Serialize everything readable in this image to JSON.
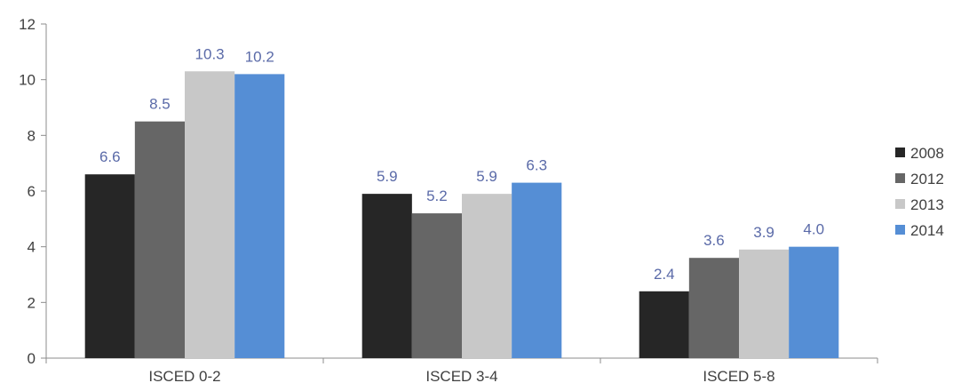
{
  "chart_data": {
    "type": "bar",
    "title": "",
    "xlabel": "",
    "ylabel": "",
    "categories": [
      "ISCED 0-2",
      "ISCED 3-4",
      "ISCED 5-8"
    ],
    "series": [
      {
        "name": "2008",
        "color": "#262626",
        "values": [
          6.6,
          5.9,
          2.4
        ],
        "labels": [
          "6.6",
          "5.9",
          "2.4"
        ]
      },
      {
        "name": "2012",
        "color": "#666666",
        "values": [
          8.5,
          5.2,
          3.6
        ],
        "labels": [
          "8.5",
          "5.2",
          "3.6"
        ]
      },
      {
        "name": "2013",
        "color": "#c8c8c8",
        "values": [
          10.3,
          5.9,
          3.9
        ],
        "labels": [
          "10.3",
          "5.9",
          "3.9"
        ]
      },
      {
        "name": "2014",
        "color": "#558ed5",
        "values": [
          10.2,
          6.3,
          4.0
        ],
        "labels": [
          "10.2",
          "6.3",
          "4.0"
        ]
      }
    ],
    "ylim": [
      0,
      12
    ],
    "yticks": [
      "0",
      "2",
      "4",
      "6",
      "8",
      "10",
      "12"
    ],
    "grid": false,
    "legend": "right"
  }
}
